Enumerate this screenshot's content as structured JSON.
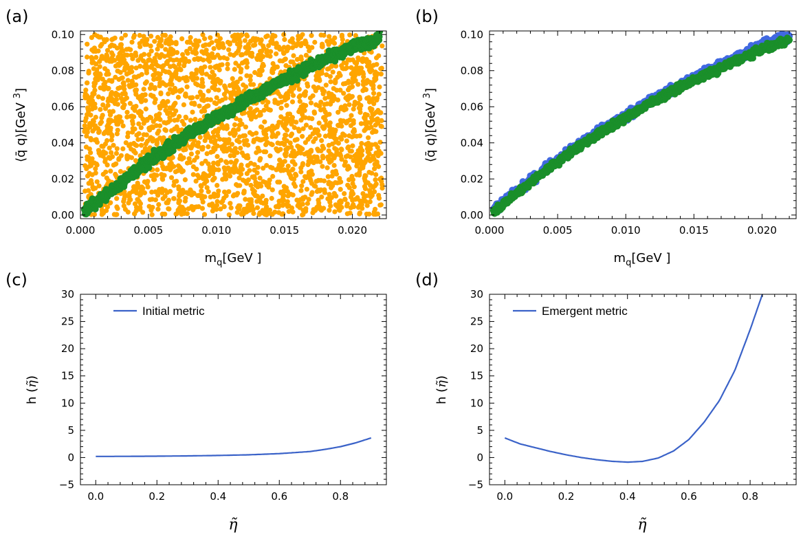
{
  "colors": {
    "orange": "#ffa500",
    "green": "#1a8f2a",
    "blue": "#4169e1",
    "curve": "#3a62c8"
  },
  "chart_data": [
    {
      "panel": "(a)",
      "type": "scatter",
      "xlabel": "m_q[GeV ]",
      "ylabel": "⟨q̄ q⟩[GeV^3]",
      "xlim": [
        0,
        0.0225
      ],
      "ylim": [
        -0.002,
        0.102
      ],
      "xticks": [
        "0.000",
        "0.005",
        "0.010",
        "0.015",
        "0.020"
      ],
      "yticks": [
        "0.00",
        "0.02",
        "0.04",
        "0.06",
        "0.08",
        "0.10"
      ],
      "series": [
        {
          "kind": "uniform-cloud",
          "color": "#ffa500",
          "x_range": [
            0.0003,
            0.0222
          ],
          "y_range": [
            0.0,
            0.1
          ],
          "count": 2600
        },
        {
          "kind": "band",
          "color": "#1a8f2a",
          "x": [
            0.0003,
            0.002,
            0.004,
            0.006,
            0.008,
            0.01,
            0.012,
            0.014,
            0.016,
            0.018,
            0.02,
            0.022
          ],
          "y": [
            0.002,
            0.012,
            0.024,
            0.035,
            0.045,
            0.054,
            0.063,
            0.071,
            0.079,
            0.086,
            0.093,
            0.098
          ],
          "halfwidth": 0.0045
        }
      ]
    },
    {
      "panel": "(b)",
      "type": "scatter",
      "xlabel": "m_q[GeV ]",
      "ylabel": "⟨q̄ q⟩[GeV^3]",
      "xlim": [
        0,
        0.0225
      ],
      "ylim": [
        -0.002,
        0.102
      ],
      "xticks": [
        "0.000",
        "0.005",
        "0.010",
        "0.015",
        "0.020"
      ],
      "yticks": [
        "0.00",
        "0.02",
        "0.04",
        "0.06",
        "0.08",
        "0.10"
      ],
      "series": [
        {
          "kind": "band",
          "color": "#4169e1",
          "x": [
            0.0003,
            0.002,
            0.004,
            0.006,
            0.008,
            0.01,
            0.012,
            0.014,
            0.016,
            0.018,
            0.02,
            0.022
          ],
          "y": [
            0.003,
            0.013,
            0.025,
            0.036,
            0.046,
            0.055,
            0.064,
            0.072,
            0.08,
            0.087,
            0.094,
            0.099
          ],
          "halfwidth": 0.0035
        },
        {
          "kind": "band",
          "color": "#1a8f2a",
          "x": [
            0.0003,
            0.002,
            0.004,
            0.006,
            0.008,
            0.01,
            0.012,
            0.014,
            0.016,
            0.018,
            0.02,
            0.022
          ],
          "y": [
            0.002,
            0.012,
            0.024,
            0.035,
            0.045,
            0.054,
            0.063,
            0.071,
            0.078,
            0.085,
            0.092,
            0.097
          ],
          "halfwidth": 0.0028
        }
      ]
    },
    {
      "panel": "(c)",
      "type": "line",
      "xlabel": "η̃",
      "ylabel": "h (η̃)",
      "xlim": [
        -0.05,
        0.95
      ],
      "ylim": [
        -5,
        30
      ],
      "xticks": [
        "0.0",
        "0.2",
        "0.4",
        "0.6",
        "0.8"
      ],
      "yticks": [
        "−5",
        "0",
        "5",
        "10",
        "15",
        "20",
        "25",
        "30"
      ],
      "series": [
        {
          "name": "Initial metric",
          "x": [
            0.0,
            0.1,
            0.2,
            0.3,
            0.4,
            0.5,
            0.6,
            0.7,
            0.75,
            0.8,
            0.85,
            0.9
          ],
          "y": [
            0.2,
            0.22,
            0.25,
            0.3,
            0.38,
            0.5,
            0.72,
            1.1,
            1.5,
            2.0,
            2.7,
            3.6
          ]
        }
      ]
    },
    {
      "panel": "(d)",
      "type": "line",
      "xlabel": "η̃",
      "ylabel": "h (η̃)",
      "xlim": [
        -0.05,
        0.95
      ],
      "ylim": [
        -5,
        30
      ],
      "xticks": [
        "0.0",
        "0.2",
        "0.4",
        "0.6",
        "0.8"
      ],
      "yticks": [
        "−5",
        "0",
        "5",
        "10",
        "15",
        "20",
        "25",
        "30"
      ],
      "series": [
        {
          "name": "Emergent metric",
          "x": [
            0.0,
            0.05,
            0.1,
            0.15,
            0.2,
            0.25,
            0.3,
            0.35,
            0.4,
            0.45,
            0.5,
            0.55,
            0.6,
            0.65,
            0.7,
            0.75,
            0.8,
            0.84
          ],
          "y": [
            3.6,
            2.5,
            1.8,
            1.1,
            0.5,
            0.0,
            -0.4,
            -0.7,
            -0.85,
            -0.7,
            -0.1,
            1.2,
            3.3,
            6.5,
            10.5,
            16.0,
            23.5,
            30.0
          ]
        }
      ]
    }
  ]
}
